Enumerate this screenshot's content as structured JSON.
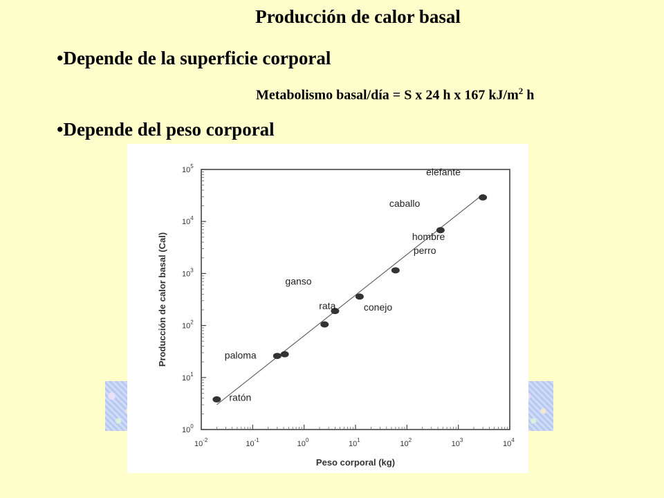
{
  "slide": {
    "title": "Producción de calor basal",
    "bullet1": "•Depende de la superficie corporal",
    "formula_main": "Metabolismo basal/día = S x 24 h x 167 kJ/m",
    "formula_sup": "2",
    "formula_end": " h",
    "bullet2": "•Depende del peso corporal"
  },
  "chart_data": {
    "type": "scatter",
    "scale": "log-log",
    "xlabel": "Peso corporal (kg)",
    "ylabel": "Producción de calor basal (Cal)",
    "xlim": [
      0.01,
      10000
    ],
    "ylim": [
      1,
      100000
    ],
    "x_ticks": [
      {
        "base": "10",
        "exp": "-2"
      },
      {
        "base": "10",
        "exp": "-1"
      },
      {
        "base": "10",
        "exp": "0"
      },
      {
        "base": "10",
        "exp": "1"
      },
      {
        "base": "10",
        "exp": "2"
      },
      {
        "base": "10",
        "exp": "3"
      },
      {
        "base": "10",
        "exp": "4"
      }
    ],
    "y_ticks": [
      {
        "base": "10",
        "exp": "0"
      },
      {
        "base": "10",
        "exp": "1"
      },
      {
        "base": "10",
        "exp": "2"
      },
      {
        "base": "10",
        "exp": "3"
      },
      {
        "base": "10",
        "exp": "4"
      },
      {
        "base": "10",
        "exp": "5"
      }
    ],
    "points": [
      {
        "label": "ratón",
        "x": 0.02,
        "y": 3.8
      },
      {
        "label": "paloma",
        "x": 0.3,
        "y": 26
      },
      {
        "label": "",
        "x": 0.42,
        "y": 28
      },
      {
        "label": "rata",
        "x": 2.5,
        "y": 105
      },
      {
        "label": "ganso",
        "x": 4,
        "y": 190
      },
      {
        "label": "conejo",
        "x": 12,
        "y": 360
      },
      {
        "label": "perro",
        "x": 60,
        "y": 1150
      },
      {
        "label": "hombre",
        "x": 60,
        "y": 1150
      },
      {
        "label": "caballo",
        "x": 450,
        "y": 6800
      },
      {
        "label": "elefante",
        "x": 3000,
        "y": 29000
      }
    ],
    "fit_line": {
      "x": [
        0.02,
        3000
      ],
      "y": [
        3.0,
        33000
      ]
    },
    "grid": false
  }
}
